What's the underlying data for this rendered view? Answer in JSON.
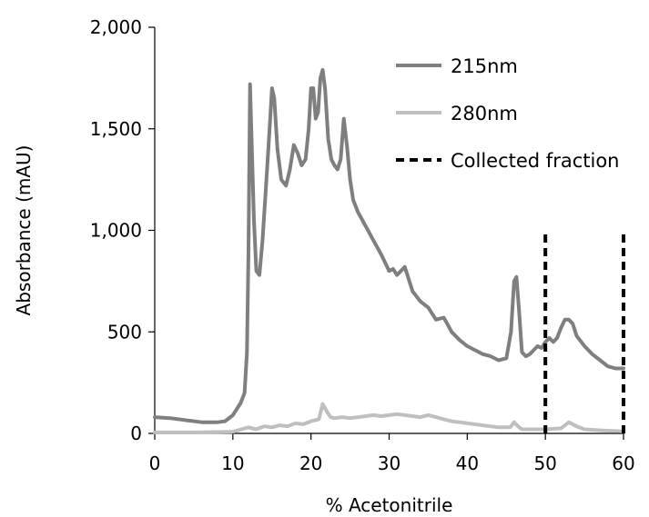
{
  "chart_data": {
    "type": "line",
    "xlabel": "% Acetonitrile",
    "ylabel": "Absorbance (mAU)",
    "xlim": [
      0,
      60
    ],
    "ylim": [
      0,
      2000
    ],
    "x_ticks": [
      "0",
      "10",
      "20",
      "30",
      "40",
      "50",
      "60"
    ],
    "y_ticks": [
      "0",
      "500",
      "1,000",
      "1,500",
      "2,000"
    ],
    "grid": false,
    "legend_position": "top-right",
    "series": [
      {
        "name": "215nm",
        "color": "#7f7f7f",
        "points": [
          [
            0,
            80
          ],
          [
            2,
            75
          ],
          [
            4,
            65
          ],
          [
            6,
            55
          ],
          [
            8,
            55
          ],
          [
            9,
            60
          ],
          [
            10,
            90
          ],
          [
            10.5,
            120
          ],
          [
            11,
            150
          ],
          [
            11.5,
            200
          ],
          [
            11.8,
            400
          ],
          [
            12,
            900
          ],
          [
            12.2,
            1720
          ],
          [
            12.4,
            1450
          ],
          [
            12.7,
            1050
          ],
          [
            13,
            800
          ],
          [
            13.4,
            780
          ],
          [
            13.8,
            950
          ],
          [
            14.3,
            1250
          ],
          [
            14.7,
            1500
          ],
          [
            15,
            1700
          ],
          [
            15.3,
            1650
          ],
          [
            15.7,
            1400
          ],
          [
            16.2,
            1250
          ],
          [
            16.8,
            1220
          ],
          [
            17.3,
            1300
          ],
          [
            17.8,
            1420
          ],
          [
            18.3,
            1380
          ],
          [
            18.8,
            1320
          ],
          [
            19.3,
            1350
          ],
          [
            19.7,
            1500
          ],
          [
            20,
            1700
          ],
          [
            20.3,
            1700
          ],
          [
            20.6,
            1550
          ],
          [
            20.9,
            1580
          ],
          [
            21.2,
            1750
          ],
          [
            21.5,
            1790
          ],
          [
            21.8,
            1700
          ],
          [
            22.2,
            1450
          ],
          [
            22.6,
            1350
          ],
          [
            23,
            1320
          ],
          [
            23.4,
            1300
          ],
          [
            23.8,
            1350
          ],
          [
            24.2,
            1550
          ],
          [
            24.6,
            1420
          ],
          [
            25,
            1250
          ],
          [
            25.4,
            1150
          ],
          [
            26,
            1090
          ],
          [
            27,
            1020
          ],
          [
            28,
            950
          ],
          [
            29,
            880
          ],
          [
            30,
            800
          ],
          [
            30.5,
            810
          ],
          [
            31,
            780
          ],
          [
            32,
            820
          ],
          [
            33,
            700
          ],
          [
            34,
            650
          ],
          [
            35,
            620
          ],
          [
            36,
            560
          ],
          [
            37,
            570
          ],
          [
            38,
            500
          ],
          [
            39,
            460
          ],
          [
            40,
            430
          ],
          [
            41,
            410
          ],
          [
            42,
            390
          ],
          [
            43,
            380
          ],
          [
            44,
            360
          ],
          [
            45,
            370
          ],
          [
            45.6,
            500
          ],
          [
            46,
            750
          ],
          [
            46.3,
            770
          ],
          [
            46.6,
            620
          ],
          [
            47,
            400
          ],
          [
            47.5,
            380
          ],
          [
            48,
            390
          ],
          [
            48.5,
            410
          ],
          [
            49,
            430
          ],
          [
            49.5,
            420
          ],
          [
            50,
            450
          ],
          [
            50.5,
            470
          ],
          [
            51,
            450
          ],
          [
            51.5,
            470
          ],
          [
            52,
            520
          ],
          [
            52.5,
            560
          ],
          [
            53,
            560
          ],
          [
            53.5,
            540
          ],
          [
            54,
            480
          ],
          [
            55,
            430
          ],
          [
            56,
            390
          ],
          [
            57,
            360
          ],
          [
            58,
            330
          ],
          [
            59,
            320
          ],
          [
            60,
            320
          ]
        ]
      },
      {
        "name": "280nm",
        "color": "#bfbfbf",
        "points": [
          [
            0,
            5
          ],
          [
            5,
            5
          ],
          [
            10,
            8
          ],
          [
            12,
            30
          ],
          [
            13,
            20
          ],
          [
            14,
            35
          ],
          [
            15,
            30
          ],
          [
            16,
            40
          ],
          [
            17,
            35
          ],
          [
            18,
            50
          ],
          [
            19,
            45
          ],
          [
            20,
            60
          ],
          [
            21,
            70
          ],
          [
            21.5,
            145
          ],
          [
            22,
            110
          ],
          [
            22.5,
            80
          ],
          [
            23,
            75
          ],
          [
            24,
            80
          ],
          [
            25,
            75
          ],
          [
            26,
            80
          ],
          [
            27,
            85
          ],
          [
            28,
            90
          ],
          [
            29,
            85
          ],
          [
            30,
            90
          ],
          [
            31,
            95
          ],
          [
            32,
            90
          ],
          [
            33,
            85
          ],
          [
            34,
            80
          ],
          [
            35,
            90
          ],
          [
            36,
            80
          ],
          [
            37,
            70
          ],
          [
            38,
            60
          ],
          [
            40,
            50
          ],
          [
            42,
            40
          ],
          [
            44,
            30
          ],
          [
            45.5,
            30
          ],
          [
            46,
            55
          ],
          [
            46.5,
            35
          ],
          [
            47,
            20
          ],
          [
            50,
            20
          ],
          [
            52,
            25
          ],
          [
            53,
            55
          ],
          [
            54,
            35
          ],
          [
            55,
            20
          ],
          [
            57,
            15
          ],
          [
            60,
            10
          ]
        ]
      },
      {
        "name": "Collected fraction",
        "color": "#000000",
        "dashed": true,
        "marker_lines": [
          {
            "x": 50,
            "y": [
              0,
              1000
            ]
          },
          {
            "x": 60,
            "y": [
              0,
              1000
            ]
          }
        ]
      }
    ]
  }
}
